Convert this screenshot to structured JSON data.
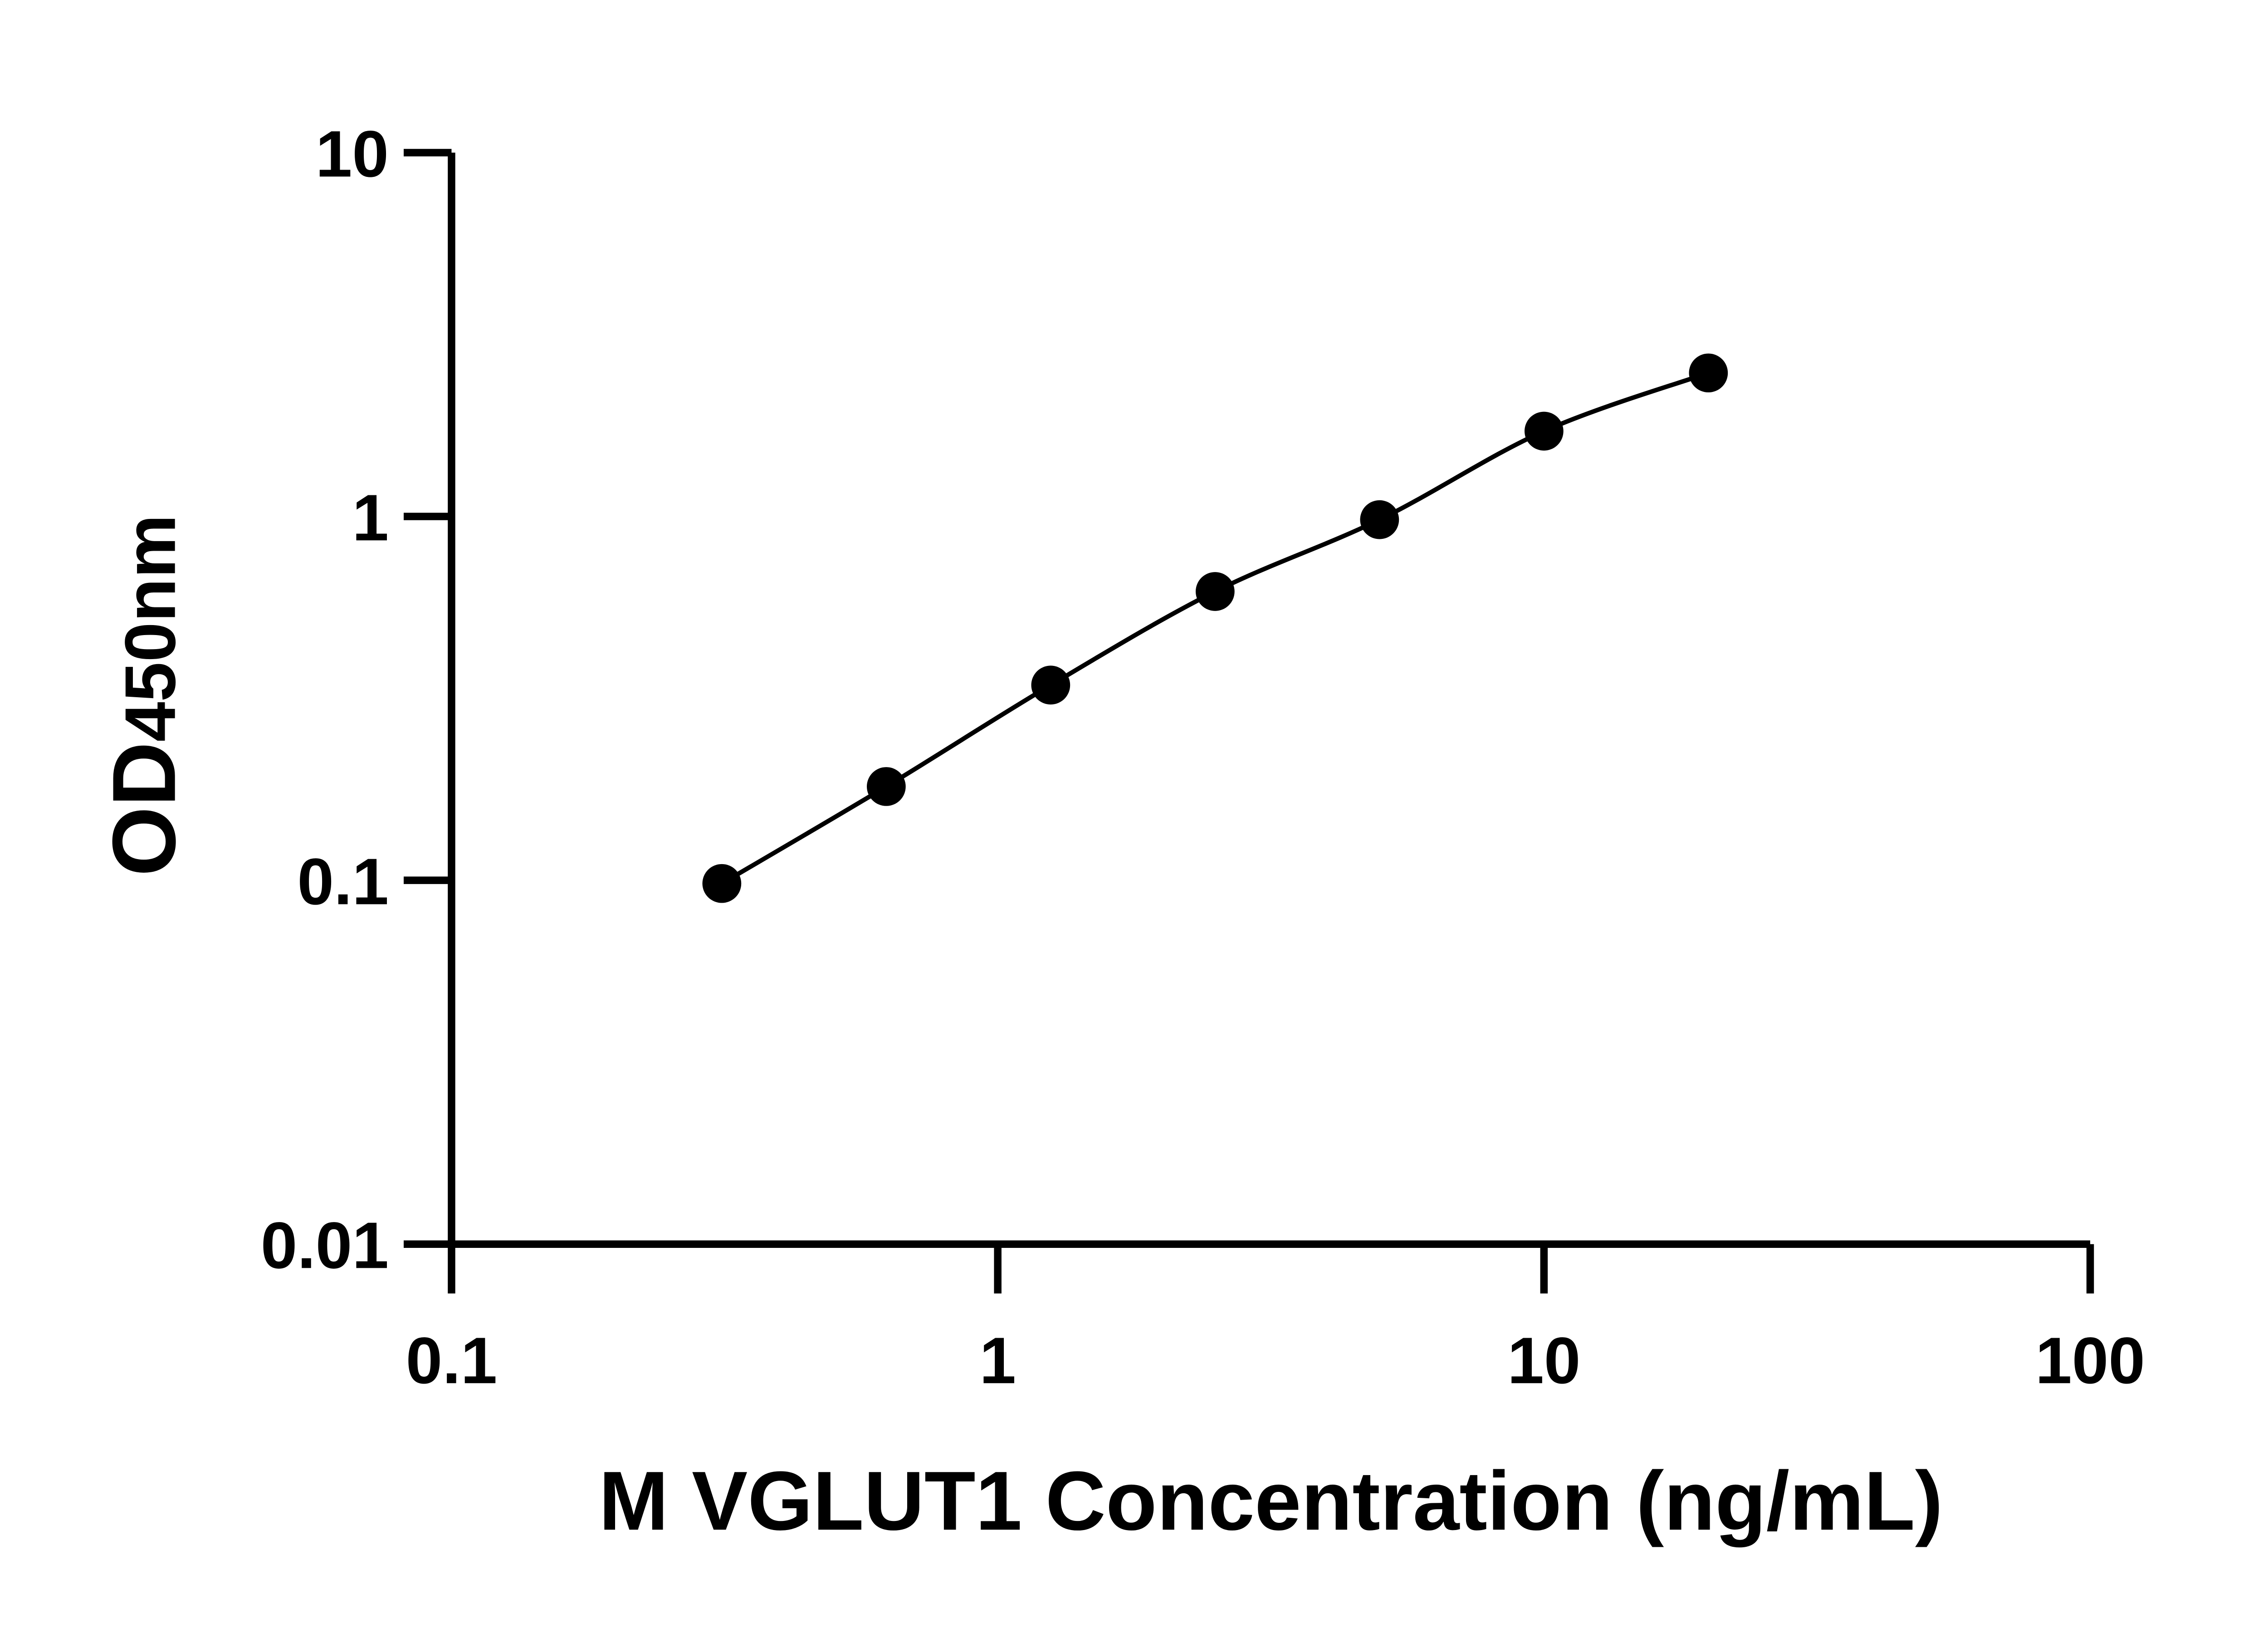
{
  "chart_data": {
    "type": "scatter",
    "title": "",
    "xlabel": "M VGLUT1 Concentration (ng/mL)",
    "ylabel_main": "OD",
    "ylabel_sub": "450nm",
    "xscale": "log",
    "yscale": "log",
    "xlim": [
      0.1,
      100
    ],
    "ylim": [
      0.01,
      10
    ],
    "xticks": [
      "0.1",
      "1",
      "10",
      "100"
    ],
    "yticks": [
      "0.01",
      "0.1",
      "1",
      "10"
    ],
    "grid": false,
    "fit_curve": true,
    "series": [
      {
        "x": [
          0.3125,
          0.625,
          1.25,
          2.5,
          5,
          10,
          20
        ],
        "y": [
          0.098,
          0.181,
          0.344,
          0.622,
          0.98,
          1.716,
          2.48
        ]
      }
    ],
    "color": "#000000"
  }
}
